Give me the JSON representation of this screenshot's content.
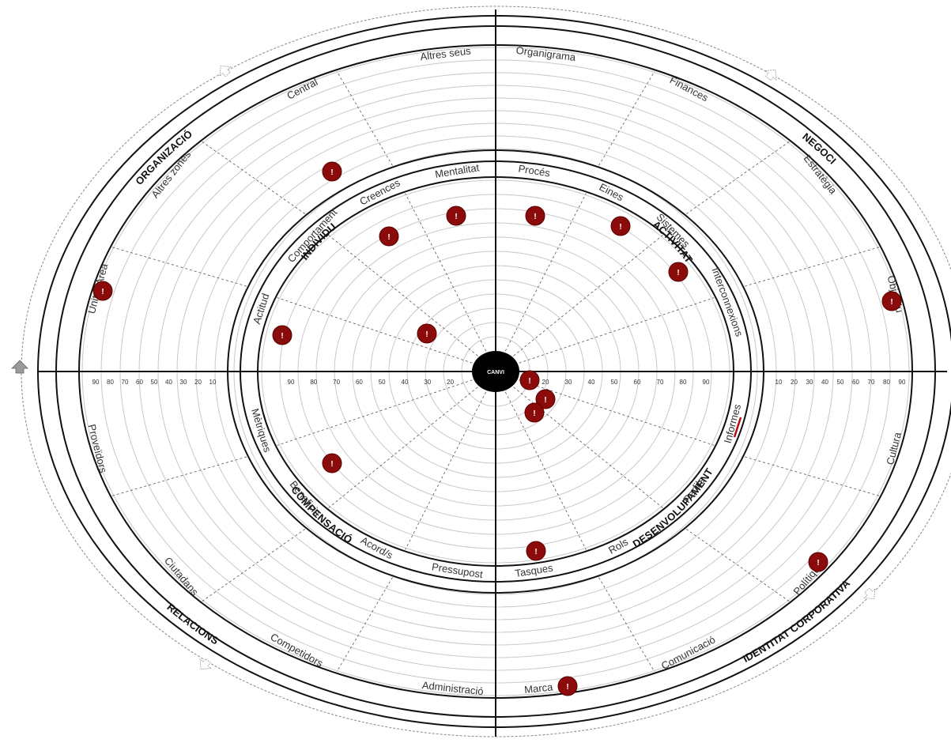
{
  "hub": {
    "label": "CANVI"
  },
  "axis": {
    "left_ticks": [
      "90",
      "80",
      "70",
      "60",
      "50",
      "40",
      "30",
      "20",
      "10"
    ],
    "inner_left_ticks": [
      "90",
      "80",
      "70",
      "60",
      "50",
      "40",
      "30",
      "20"
    ],
    "inner_right_ticks": [
      "20",
      "30",
      "40",
      "50",
      "60",
      "70",
      "80",
      "90"
    ],
    "right_ticks": [
      "10",
      "20",
      "30",
      "40",
      "50",
      "60",
      "70",
      "80",
      "90"
    ]
  },
  "sectors": {
    "inner": [
      "INDIVIDU",
      "ACTIVITAT",
      "DESENVOLUPAMENT",
      "COMPENSACIÓ"
    ],
    "outer": [
      "ORGANIZACIÓ",
      "NEGOCI",
      "IDENTITAT CORPORATIVA",
      "RELACIONS"
    ]
  },
  "inner_labels": [
    "Mentalitat",
    "Procés",
    "Creences",
    "Eines",
    "Comportament",
    "Sistemes",
    "Actitud",
    "Interconnexions",
    "Informes",
    "Mètriques",
    "Perfils",
    "Beneficis",
    "Rols",
    "Acord/s",
    "Pressupost",
    "Tasques"
  ],
  "outer_labels": [
    "Altres seus",
    "Organigrama",
    "Central",
    "Finances",
    "Altres zones",
    "Estratègia",
    "Unitat/Àrea",
    "Objectiu",
    "Proveïdors",
    "Cultura",
    "Ciutadans",
    "Polítiques",
    "Competidors",
    "Comunicació",
    "Administració",
    "Marca"
  ],
  "marker": {
    "glyph": "!",
    "color": "#8b0a0a"
  },
  "markers_count_label": "",
  "nav": {
    "icons": [
      "up-arrow-icon",
      "up-arrow-icon",
      "up-arrow-icon",
      "up-arrow-icon",
      "up-arrow-icon"
    ]
  }
}
